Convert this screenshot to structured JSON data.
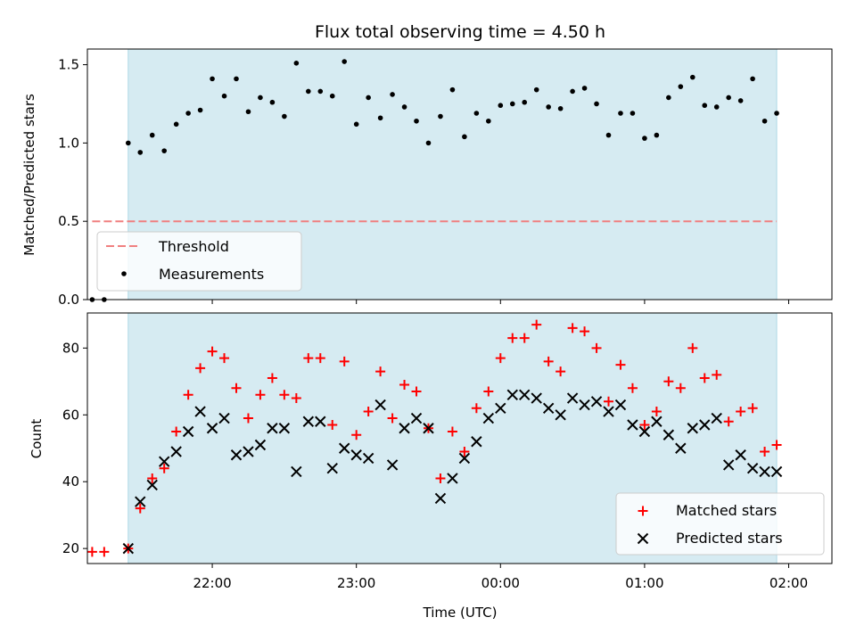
{
  "chart_data": [
    {
      "type": "scatter",
      "title": "Flux total observing time = 4.50 h",
      "xlabel": "",
      "ylabel": "Matched/Predicted stars",
      "ylim": [
        0,
        1.6
      ],
      "yticks": [
        "0.0",
        "0.5",
        "1.0",
        "1.5"
      ],
      "grid": false,
      "legend_position": "lower-left",
      "observing_window": {
        "start": "21:25",
        "end": "01:55",
        "color": "#add8e6"
      },
      "threshold": {
        "name": "Threshold",
        "value": 0.5,
        "x_start": "21:10",
        "x_end": "01:55",
        "color": "#f08080"
      },
      "series": [
        {
          "name": "Measurements",
          "color": "#000000",
          "x": [
            "21:10",
            "21:15",
            "21:25",
            "21:30",
            "21:35",
            "21:40",
            "21:45",
            "21:50",
            "21:55",
            "22:00",
            "22:05",
            "22:10",
            "22:15",
            "22:20",
            "22:25",
            "22:30",
            "22:35",
            "22:40",
            "22:45",
            "22:50",
            "22:55",
            "23:00",
            "23:05",
            "23:10",
            "23:15",
            "23:20",
            "23:25",
            "23:30",
            "23:35",
            "23:40",
            "23:45",
            "23:50",
            "23:55",
            "00:00",
            "00:05",
            "00:10",
            "00:15",
            "00:20",
            "00:25",
            "00:30",
            "00:35",
            "00:40",
            "00:45",
            "00:50",
            "00:55",
            "01:00",
            "01:05",
            "01:10",
            "01:15",
            "01:20",
            "01:25",
            "01:30",
            "01:35",
            "01:40",
            "01:45",
            "01:50",
            "01:55"
          ],
          "y": [
            0,
            0,
            1.0,
            0.94,
            1.05,
            0.95,
            1.12,
            1.19,
            1.21,
            1.41,
            1.3,
            1.41,
            1.2,
            1.29,
            1.26,
            1.17,
            1.51,
            1.33,
            1.33,
            1.3,
            1.52,
            1.12,
            1.29,
            1.16,
            1.31,
            1.23,
            1.14,
            1.0,
            1.17,
            1.34,
            1.04,
            1.19,
            1.14,
            1.24,
            1.25,
            1.26,
            1.34,
            1.23,
            1.22,
            1.33,
            1.35,
            1.25,
            1.05,
            1.19,
            1.19,
            1.03,
            1.05,
            1.29,
            1.36,
            1.42,
            1.24,
            1.23,
            1.29,
            1.27,
            1.41,
            1.14,
            1.19
          ]
        }
      ]
    },
    {
      "type": "scatter",
      "xlabel": "Time (UTC)",
      "ylabel": "Count",
      "ylim": [
        15.5,
        90.5
      ],
      "yticks": [
        "20",
        "40",
        "60",
        "80"
      ],
      "xticks": [
        "22:00",
        "23:00",
        "00:00",
        "01:00",
        "02:00"
      ],
      "grid": false,
      "legend_position": "lower-right",
      "series": [
        {
          "name": "Matched stars",
          "color": "#ff0000",
          "marker": "plus",
          "x": [
            "21:10",
            "21:15",
            "21:25",
            "21:30",
            "21:35",
            "21:40",
            "21:45",
            "21:50",
            "21:55",
            "22:00",
            "22:05",
            "22:10",
            "22:15",
            "22:20",
            "22:25",
            "22:30",
            "22:35",
            "22:40",
            "22:45",
            "22:50",
            "22:55",
            "23:00",
            "23:05",
            "23:10",
            "23:15",
            "23:20",
            "23:25",
            "23:30",
            "23:35",
            "23:40",
            "23:45",
            "23:50",
            "23:55",
            "00:00",
            "00:05",
            "00:10",
            "00:15",
            "00:20",
            "00:25",
            "00:30",
            "00:35",
            "00:40",
            "00:45",
            "00:50",
            "00:55",
            "01:00",
            "01:05",
            "01:10",
            "01:15",
            "01:20",
            "01:25",
            "01:30",
            "01:35",
            "01:40",
            "01:45",
            "01:50",
            "01:55"
          ],
          "y": [
            19,
            19,
            20,
            32,
            41,
            44,
            55,
            66,
            74,
            79,
            77,
            68,
            59,
            66,
            71,
            66,
            65,
            77,
            77,
            57,
            76,
            54,
            61,
            73,
            59,
            69,
            67,
            56,
            41,
            55,
            49,
            62,
            67,
            77,
            83,
            83,
            87,
            76,
            73,
            86,
            85,
            80,
            64,
            75,
            68,
            57,
            61,
            70,
            68,
            80,
            71,
            72,
            58,
            61,
            62,
            49,
            51
          ]
        },
        {
          "name": "Predicted stars",
          "color": "#000000",
          "marker": "cross",
          "x": [
            "21:25",
            "21:30",
            "21:35",
            "21:40",
            "21:45",
            "21:50",
            "21:55",
            "22:00",
            "22:05",
            "22:10",
            "22:15",
            "22:20",
            "22:25",
            "22:30",
            "22:35",
            "22:40",
            "22:45",
            "22:50",
            "22:55",
            "23:00",
            "23:05",
            "23:10",
            "23:15",
            "23:20",
            "23:25",
            "23:30",
            "23:35",
            "23:40",
            "23:45",
            "23:50",
            "23:55",
            "00:00",
            "00:05",
            "00:10",
            "00:15",
            "00:20",
            "00:25",
            "00:30",
            "00:35",
            "00:40",
            "00:45",
            "00:50",
            "00:55",
            "01:00",
            "01:05",
            "01:10",
            "01:15",
            "01:20",
            "01:25",
            "01:30",
            "01:35",
            "01:40",
            "01:45",
            "01:50",
            "01:55"
          ],
          "y": [
            20,
            34,
            39,
            46,
            49,
            55,
            61,
            56,
            59,
            48,
            49,
            51,
            56,
            56,
            43,
            58,
            58,
            44,
            50,
            48,
            47,
            63,
            45,
            56,
            59,
            56,
            35,
            41,
            47,
            52,
            59,
            62,
            66,
            66,
            65,
            62,
            60,
            65,
            63,
            64,
            61,
            63,
            57,
            55,
            58,
            54,
            50,
            56,
            57,
            59,
            45,
            48,
            44,
            43,
            43
          ]
        }
      ]
    }
  ]
}
